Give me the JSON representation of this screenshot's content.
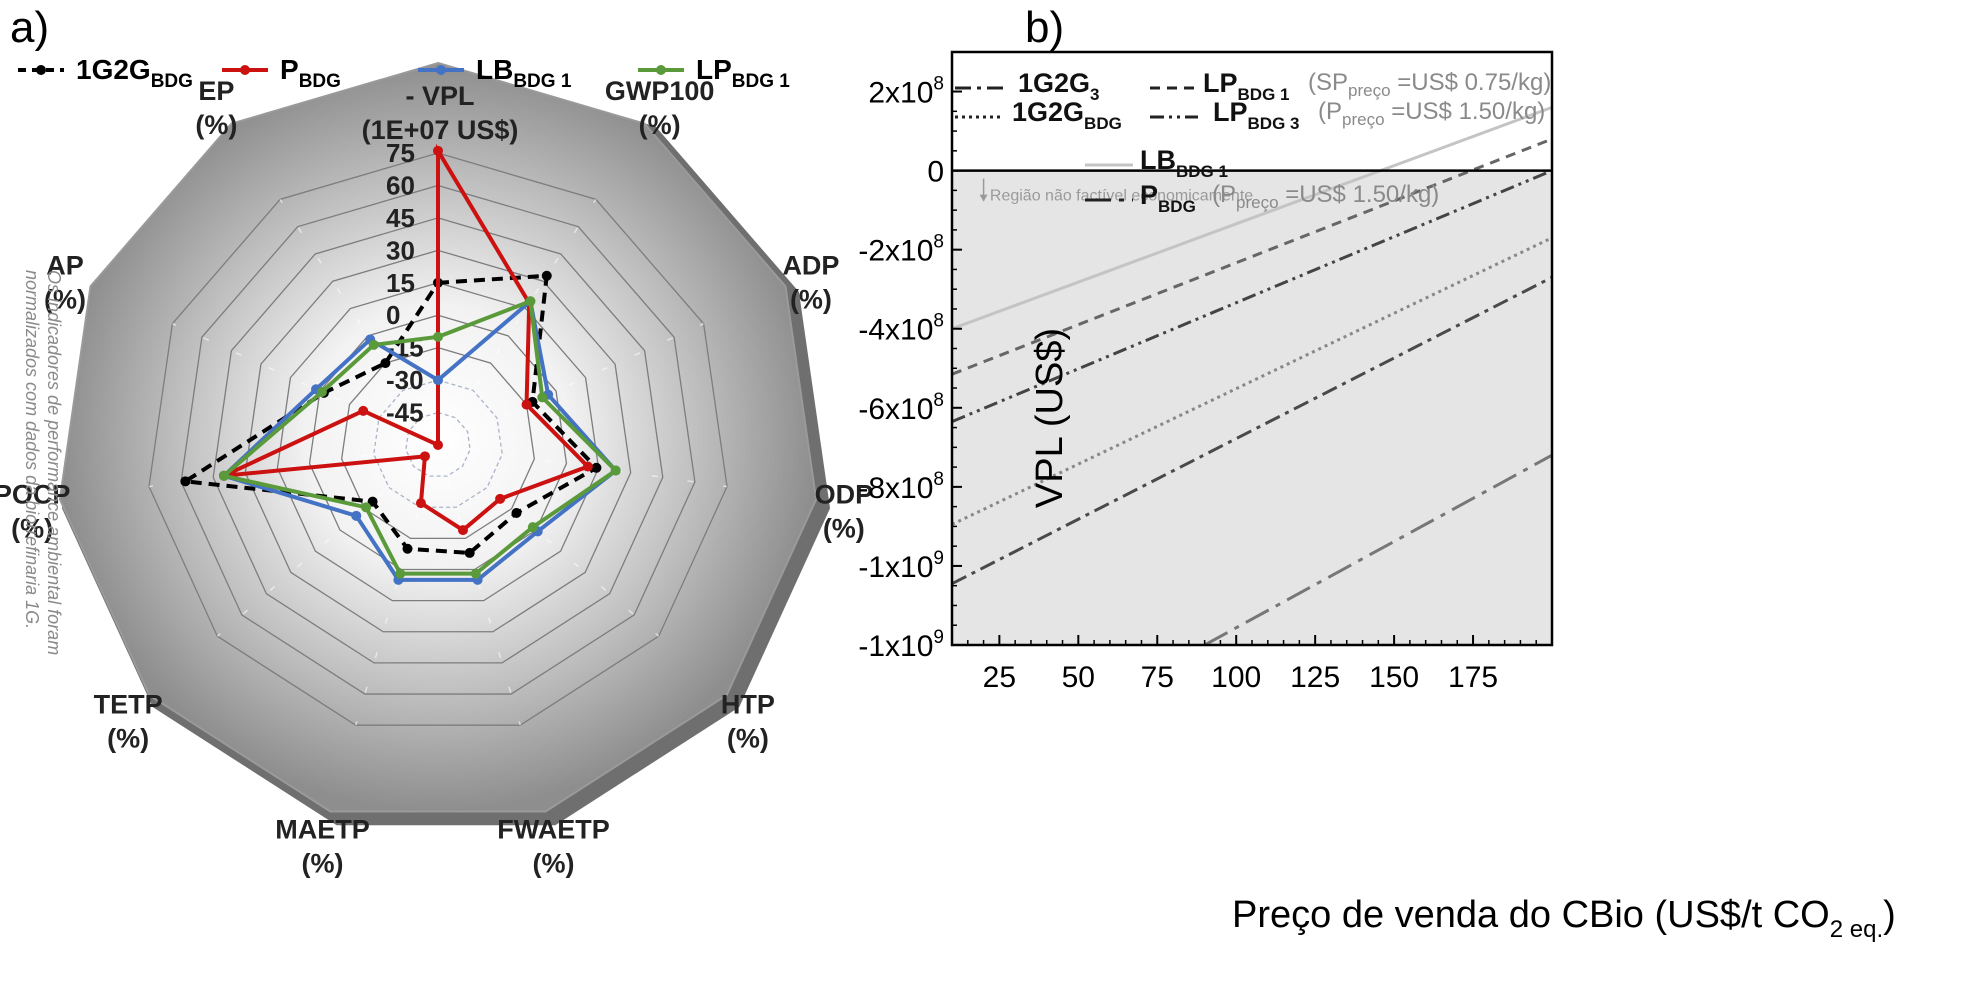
{
  "panel_a_label": "a)",
  "panel_b_label": "b)",
  "chart_data": [
    {
      "type": "radar",
      "radial_ticks": [
        "75",
        "60",
        "45",
        "30",
        "15",
        "0",
        "-15",
        "-30",
        "-45"
      ],
      "radial_range": [
        -60,
        75
      ],
      "axes": [
        {
          "name": "- VPL",
          "unit": "(1E+07 US$)"
        },
        {
          "name": "GWP100",
          "unit": "(%)"
        },
        {
          "name": "ADP",
          "unit": "(%)"
        },
        {
          "name": "ODP",
          "unit": "(%)"
        },
        {
          "name": "HTP",
          "unit": "(%)"
        },
        {
          "name": "FWAETP",
          "unit": "(%)"
        },
        {
          "name": "MAETP",
          "unit": "(%)"
        },
        {
          "name": "TETP",
          "unit": "(%)"
        },
        {
          "name": "POCP",
          "unit": "(%)"
        },
        {
          "name": "AP",
          "unit": "(%)"
        },
        {
          "name": "EP",
          "unit": "(%)"
        }
      ],
      "series": [
        {
          "name": "1G2G",
          "sub": "BDG",
          "color": "#000000",
          "dash": "dashed",
          "values": [
            15,
            33,
            -12,
            14,
            -12,
            -8,
            -10,
            -20,
            58,
            -2,
            -15
          ]
        },
        {
          "name": "P",
          "sub": "BDG",
          "color": "#cc1111",
          "dash": "solid",
          "values": [
            76,
            18,
            -15,
            10,
            -22,
            -19,
            -32,
            -52,
            40,
            -22,
            -60
          ]
        },
        {
          "name": "LB",
          "sub": "BDG 1",
          "color": "#4472c4",
          "dash": "solid",
          "values": [
            -30,
            19,
            -4,
            23,
            1,
            5,
            5,
            -10,
            40,
            2,
            -2
          ]
        },
        {
          "name": "LP",
          "sub": "BDG 1",
          "color": "#5b9a3a",
          "dash": "solid",
          "values": [
            -10,
            19,
            -7,
            23,
            -2,
            2,
            2,
            -16,
            40,
            -1,
            -5
          ]
        }
      ],
      "side_note": [
        "Os indicadores de performance ambiental foram",
        "normalizados com dados da biorrefinaria 1G."
      ]
    },
    {
      "type": "line",
      "xlabel": "Preço de venda do CBio (US$/t CO",
      "xlabel_sub": "2 eq.",
      "xlabel_end": ")",
      "ylabel": "VPL (US$)",
      "xlim": [
        10,
        200
      ],
      "ylim": [
        -1200000000,
        300000000
      ],
      "x_ticks": [
        "25",
        "50",
        "75",
        "100",
        "125",
        "150",
        "175"
      ],
      "x_tick_values": [
        25,
        50,
        75,
        100,
        125,
        150,
        175
      ],
      "y_ticks": [
        {
          "base": "2x10",
          "exp": "8",
          "value": 200000000
        },
        {
          "base": "0",
          "exp": "",
          "value": 0
        },
        {
          "base": "-2x10",
          "exp": "8",
          "value": -200000000
        },
        {
          "base": "-4x10",
          "exp": "8",
          "value": -400000000
        },
        {
          "base": "-6x10",
          "exp": "8",
          "value": -600000000
        },
        {
          "base": "-8x10",
          "exp": "8",
          "value": -800000000
        },
        {
          "base": "-1x10",
          "exp": "9",
          "value": -1000000000
        },
        {
          "base": "-1x10",
          "exp": "9",
          "value": -1200000000
        }
      ],
      "infeasible_region_label": "Região não factível economicamente",
      "series": [
        {
          "name": "LB",
          "sub": "BDG 1",
          "color": "#c4c4c4",
          "style": "solid",
          "points": [
            [
              10,
              -400000000
            ],
            [
              200,
              160000000
            ]
          ]
        },
        {
          "name": "LP",
          "sub": "BDG 1",
          "color": "#666666",
          "style": "dash",
          "points": [
            [
              10,
              -515000000
            ],
            [
              200,
              80000000
            ]
          ]
        },
        {
          "name": "LP",
          "sub": "BDG 3",
          "color": "#444444",
          "style": "dashdotdot",
          "points": [
            [
              10,
              -635000000
            ],
            [
              200,
              0
            ]
          ]
        },
        {
          "name": "1G2G",
          "sub": "BDG",
          "color": "#888888",
          "style": "dot",
          "points": [
            [
              10,
              -895000000
            ],
            [
              200,
              -170000000
            ]
          ]
        },
        {
          "name": "1G2G",
          "sub": "3",
          "color": "#4a4a4a",
          "style": "dashdot",
          "points": [
            [
              10,
              -1045000000
            ],
            [
              200,
              -270000000
            ]
          ]
        },
        {
          "name": "P",
          "sub": "BDG",
          "color": "#777777",
          "style": "longdashdot",
          "points": [
            [
              90,
              -1200000000
            ],
            [
              200,
              -720000000
            ]
          ]
        }
      ],
      "legend": [
        {
          "label": "1G2G",
          "sub": "3",
          "note": ""
        },
        {
          "label": "LP",
          "sub": "BDG 1",
          "note_pre": "(SP",
          "note_sub": "preço",
          "note_post": " =US$ 0.75/kg)"
        },
        {
          "label": "1G2G",
          "sub": "BDG",
          "note": ""
        },
        {
          "label": "LP",
          "sub": "BDG 3",
          "note_pre": "(P",
          "note_sub": "preço",
          "note_post": " =US$ 1.50/kg)"
        },
        {
          "label": "LB",
          "sub": "BDG 1",
          "note": ""
        },
        {
          "label": "P",
          "sub": "BDG",
          "note_pre": "(P",
          "note_sub": "preço",
          "note_post": " =US$ 1.50/kg)"
        }
      ]
    }
  ]
}
